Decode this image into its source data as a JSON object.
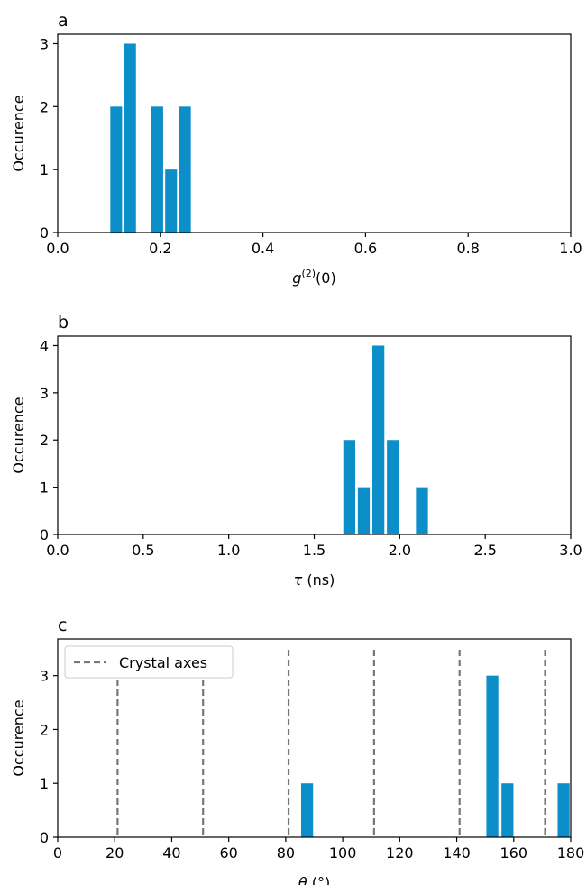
{
  "colors": {
    "bar": "#0c8ec8",
    "axes_line": "#777777",
    "frame": "#000000"
  },
  "chart_data": [
    {
      "type": "bar",
      "panel_label": "a",
      "xlabel": "g(2)(0)",
      "xlabel_parts": {
        "main": "g",
        "sup": "(2)",
        "rest": "(0)"
      },
      "ylabel": "Occurence",
      "xlim": [
        0.0,
        1.0
      ],
      "ylim": [
        0,
        3.15
      ],
      "xticks": [
        0.0,
        0.2,
        0.4,
        0.6,
        0.8,
        1.0
      ],
      "xtick_labels": [
        "0.0",
        "0.2",
        "0.4",
        "0.6",
        "0.8",
        "1.0"
      ],
      "yticks": [
        0,
        1,
        2,
        3
      ],
      "ytick_labels": [
        "0",
        "1",
        "2",
        "3"
      ],
      "bar_width": 0.023,
      "bars": [
        {
          "x": 0.114,
          "value": 2
        },
        {
          "x": 0.141,
          "value": 3
        },
        {
          "x": 0.194,
          "value": 2
        },
        {
          "x": 0.221,
          "value": 1
        },
        {
          "x": 0.248,
          "value": 2
        }
      ]
    },
    {
      "type": "bar",
      "panel_label": "b",
      "xlabel": "τ (ns)",
      "ylabel": "Occurence",
      "xlim": [
        0.0,
        3.0
      ],
      "ylim": [
        0,
        4.2
      ],
      "xticks": [
        0.0,
        0.5,
        1.0,
        1.5,
        2.0,
        2.5,
        3.0
      ],
      "xtick_labels": [
        "0.0",
        "0.5",
        "1.0",
        "1.5",
        "2.0",
        "2.5",
        "3.0"
      ],
      "yticks": [
        0,
        1,
        2,
        3,
        4
      ],
      "ytick_labels": [
        "0",
        "1",
        "2",
        "3",
        "4"
      ],
      "bar_width": 0.07,
      "bars": [
        {
          "x": 1.705,
          "value": 2
        },
        {
          "x": 1.79,
          "value": 1
        },
        {
          "x": 1.875,
          "value": 4
        },
        {
          "x": 1.96,
          "value": 2
        },
        {
          "x": 2.13,
          "value": 1
        }
      ]
    },
    {
      "type": "bar",
      "panel_label": "c",
      "xlabel": "θ (°)",
      "ylabel": "Occurence",
      "xlim": [
        0,
        180
      ],
      "ylim": [
        0,
        3.68
      ],
      "xticks": [
        0,
        20,
        40,
        60,
        80,
        100,
        120,
        140,
        160,
        180
      ],
      "xtick_labels": [
        "0",
        "20",
        "40",
        "60",
        "80",
        "100",
        "120",
        "140",
        "160",
        "180"
      ],
      "yticks": [
        0,
        1,
        2,
        3
      ],
      "ytick_labels": [
        "0",
        "1",
        "2",
        "3"
      ],
      "bar_width": 4.2,
      "bars": [
        {
          "x": 87.5,
          "value": 1
        },
        {
          "x": 152.5,
          "value": 3
        },
        {
          "x": 157.8,
          "value": 1
        },
        {
          "x": 177.5,
          "value": 1
        }
      ],
      "vlines": [
        21,
        51,
        81,
        111,
        141,
        171
      ],
      "legend": {
        "label": "Crystal axes",
        "placement": "top-left"
      }
    }
  ]
}
